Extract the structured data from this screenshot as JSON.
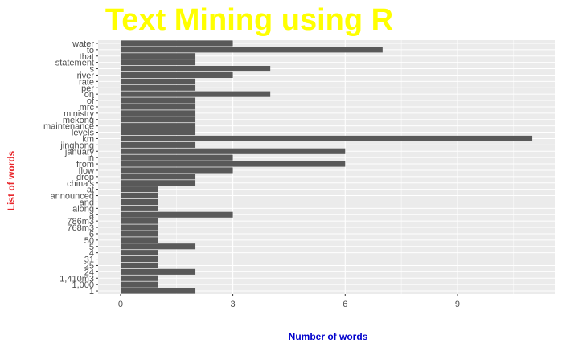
{
  "colors": {
    "title": "#FFFF00",
    "ylabel": "#E8262B",
    "xlabel": "#0000CC",
    "panel": "#EBEBEB",
    "grid_major": "#FFFFFF",
    "bar": "#595959",
    "tick_text": "#4D4D4D"
  },
  "chart_data": {
    "type": "bar",
    "orientation": "horizontal",
    "title": "Text Mining using R",
    "xlabel": "Number of words",
    "ylabel": "List of words",
    "xlim": [
      -0.6,
      11.6
    ],
    "xticks": [
      0,
      3,
      6,
      9
    ],
    "grid": true,
    "categories": [
      "water",
      "to",
      "that",
      "statement",
      "s",
      "river",
      "rate",
      "per",
      "on",
      "of",
      "mrc",
      "ministry",
      "mekong",
      "maintenance",
      "levels",
      "km",
      "jinghong",
      "january",
      "in",
      "from",
      "flow",
      "drop",
      "china's",
      "at",
      "announced",
      "and",
      "along",
      "a",
      "786m3",
      "768m3",
      "6",
      "50",
      "5",
      "4",
      "31",
      "25",
      "24",
      "1,410m3",
      "1,000",
      "1"
    ],
    "values": [
      3,
      7,
      2,
      2,
      4,
      3,
      2,
      2,
      4,
      2,
      2,
      2,
      2,
      2,
      2,
      11,
      2,
      6,
      3,
      6,
      3,
      2,
      2,
      1,
      1,
      1,
      1,
      3,
      1,
      1,
      1,
      1,
      2,
      1,
      1,
      1,
      2,
      1,
      1,
      2
    ]
  }
}
